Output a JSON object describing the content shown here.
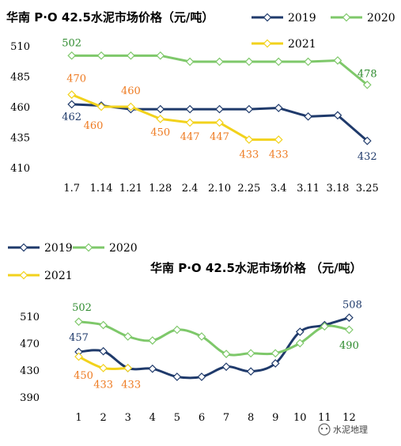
{
  "colors": {
    "2019": "#1f3a6b",
    "2020": "#7ec86a",
    "2021": "#f2d21c",
    "label2019": "#1f3a6b",
    "label2020": "#2e8b2e",
    "label2021": "#ee7b22"
  },
  "watermark": "水泥地理",
  "chart_data": [
    {
      "type": "line",
      "title": "华南 P·O 42.5水泥市场价格（元/吨）",
      "categories": [
        "1.7",
        "1.14",
        "1.21",
        "1.28",
        "2.4",
        "2.10",
        "2.25",
        "3.4",
        "3.11",
        "3.18",
        "3.25"
      ],
      "ylim": [
        410,
        510
      ],
      "yticks": [
        "410",
        "435",
        "460",
        "485",
        "510"
      ],
      "legend_position": "top-right",
      "series": [
        {
          "name": "2019",
          "values": [
            462,
            461,
            458,
            458,
            458,
            458,
            458,
            459,
            452,
            453,
            432
          ]
        },
        {
          "name": "2020",
          "values": [
            502,
            502,
            502,
            502,
            497,
            497,
            497,
            497,
            497,
            498,
            478
          ]
        },
        {
          "name": "2021",
          "values": [
            470,
            460,
            460,
            450,
            447,
            447,
            433,
            433,
            null,
            null,
            null
          ]
        }
      ],
      "data_labels": [
        {
          "series": "2019",
          "index": 0,
          "text": "462"
        },
        {
          "series": "2019",
          "index": 10,
          "text": "432"
        },
        {
          "series": "2020",
          "index": 0,
          "text": "502"
        },
        {
          "series": "2020",
          "index": 10,
          "text": "478"
        },
        {
          "series": "2021",
          "index": 0,
          "text": "470"
        },
        {
          "series": "2021",
          "index": 1,
          "text": "460"
        },
        {
          "series": "2021",
          "index": 2,
          "text": "460"
        },
        {
          "series": "2021",
          "index": 3,
          "text": "450"
        },
        {
          "series": "2021",
          "index": 4,
          "text": "447"
        },
        {
          "series": "2021",
          "index": 5,
          "text": "447"
        },
        {
          "series": "2021",
          "index": 6,
          "text": "433"
        },
        {
          "series": "2021",
          "index": 7,
          "text": "433"
        }
      ]
    },
    {
      "type": "line",
      "title": "华南 P·O 42.5水泥市场价格 （元/吨）",
      "categories": [
        "1",
        "2",
        "3",
        "4",
        "5",
        "6",
        "7",
        "8",
        "9",
        "10",
        "11",
        "12"
      ],
      "ylim": [
        390,
        510
      ],
      "yticks": [
        "390",
        "430",
        "470",
        "510"
      ],
      "legend_position": "top-left",
      "series": [
        {
          "name": "2019",
          "values": [
            457,
            458,
            433,
            432,
            420,
            420,
            435,
            428,
            440,
            487,
            497,
            508
          ]
        },
        {
          "name": "2020",
          "values": [
            502,
            497,
            480,
            474,
            490,
            480,
            454,
            455,
            455,
            470,
            495,
            490
          ]
        },
        {
          "name": "2021",
          "values": [
            450,
            433,
            433,
            null,
            null,
            null,
            null,
            null,
            null,
            null,
            null,
            null
          ]
        }
      ],
      "data_labels": [
        {
          "series": "2019",
          "index": 0,
          "text": "457"
        },
        {
          "series": "2019",
          "index": 11,
          "text": "508"
        },
        {
          "series": "2020",
          "index": 0,
          "text": "502"
        },
        {
          "series": "2020",
          "index": 11,
          "text": "490"
        },
        {
          "series": "2021",
          "index": 0,
          "text": "450"
        },
        {
          "series": "2021",
          "index": 1,
          "text": "433"
        },
        {
          "series": "2021",
          "index": 2,
          "text": "433"
        }
      ]
    }
  ]
}
